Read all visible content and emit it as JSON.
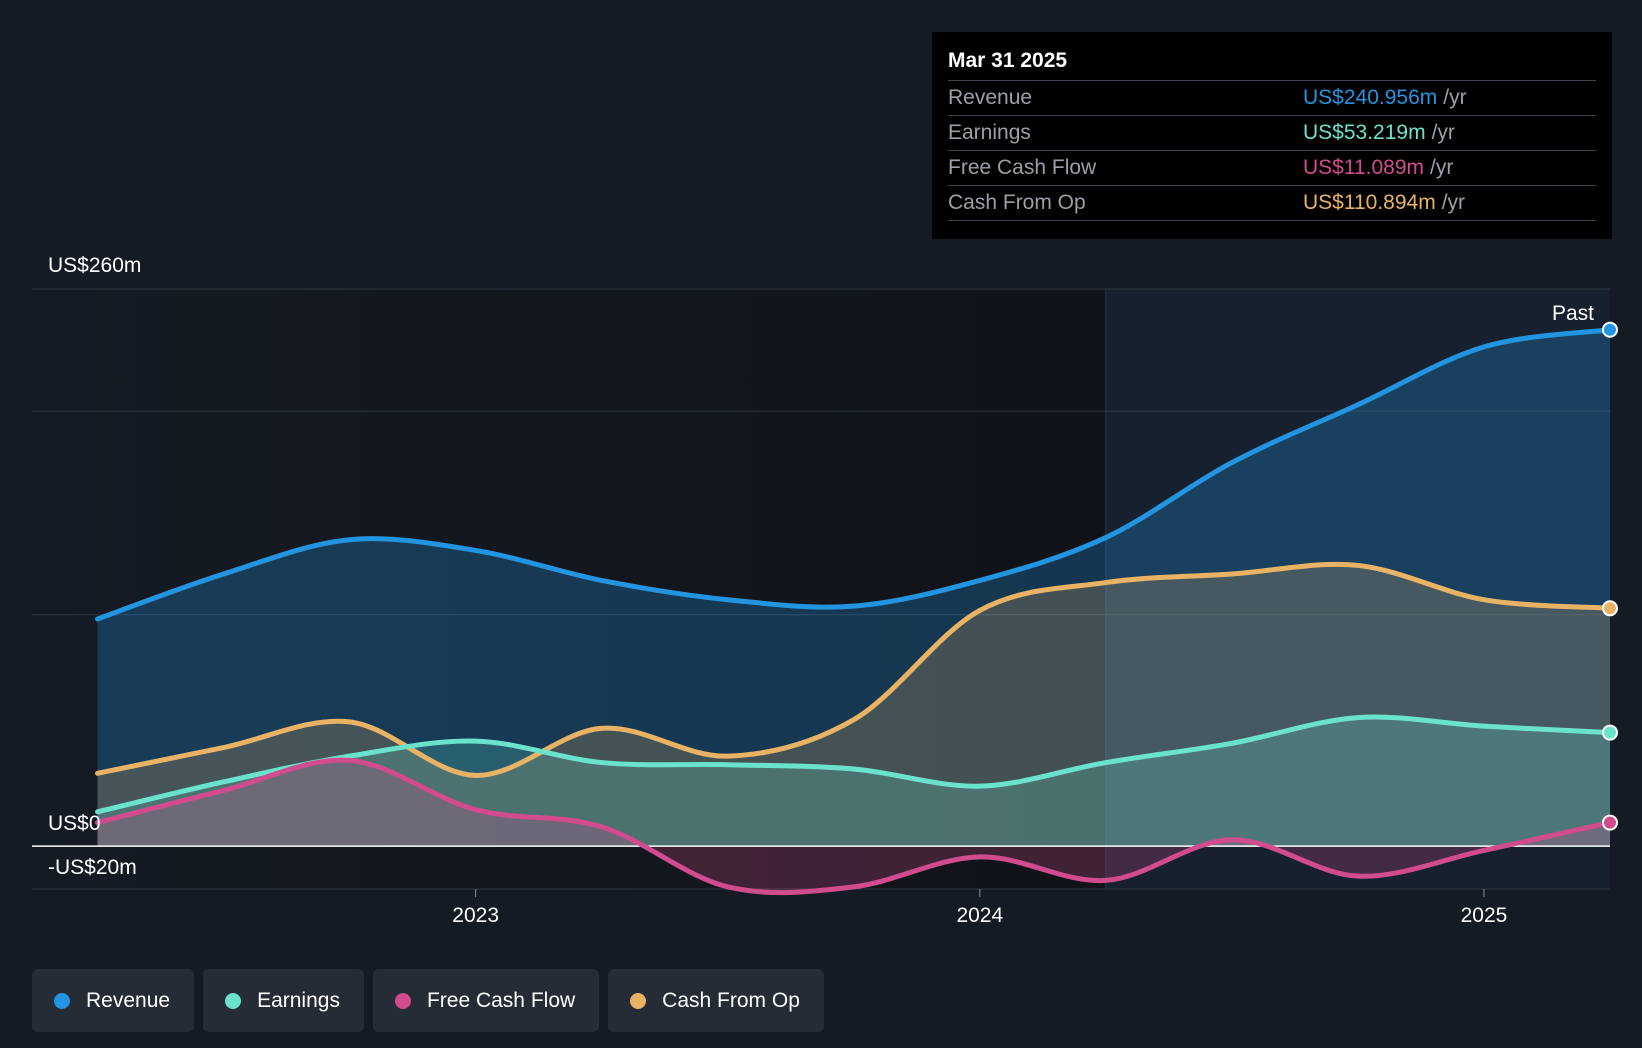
{
  "colors": {
    "background": "#151b24",
    "revenue": "#2394df",
    "earnings": "#6be3cc",
    "fcf": "#d04c8c",
    "cfo": "#e9b365",
    "grid": "#2f3640",
    "zero_line": "#ffffff"
  },
  "tooltip": {
    "date": "Mar 31 2025",
    "rows": [
      {
        "label": "Revenue",
        "value": "US$240.956m",
        "unit": "/yr",
        "color": "#2394df"
      },
      {
        "label": "Earnings",
        "value": "US$53.219m",
        "unit": "/yr",
        "color": "#6be3cc"
      },
      {
        "label": "Free Cash Flow",
        "value": "US$11.089m",
        "unit": "/yr",
        "color": "#d04c8c"
      },
      {
        "label": "Cash From Op",
        "value": "US$110.894m",
        "unit": "/yr",
        "color": "#e9b365"
      }
    ]
  },
  "legend": {
    "items": [
      {
        "label": "Revenue",
        "color": "#2394df"
      },
      {
        "label": "Earnings",
        "color": "#6be3cc"
      },
      {
        "label": "Free Cash Flow",
        "color": "#d04c8c"
      },
      {
        "label": "Cash From Op",
        "color": "#e9b365"
      }
    ]
  },
  "chart_data": {
    "type": "area",
    "title": "",
    "xlabel": "",
    "ylabel": "",
    "ylim": [
      -20,
      260
    ],
    "y_labels": {
      "top": "US$260m",
      "zero": "US$0",
      "bottom": "-US$20m"
    },
    "x_ticks": [
      {
        "label": "2023",
        "t": 2023.0
      },
      {
        "label": "2024",
        "t": 2024.0
      },
      {
        "label": "2025",
        "t": 2025.0
      }
    ],
    "x_range": [
      2022.12,
      2025.25
    ],
    "past_divider_t": 2024.25,
    "past_label": "Past",
    "x": [
      2022.25,
      2022.5,
      2022.75,
      2023.0,
      2023.25,
      2023.5,
      2023.75,
      2024.0,
      2024.25,
      2024.5,
      2024.75,
      2025.0,
      2025.25
    ],
    "series": [
      {
        "name": "Revenue",
        "key": "revenue",
        "values": [
          106,
          127,
          143,
          138,
          124,
          115,
          112,
          124,
          144,
          179,
          206,
          233,
          241
        ]
      },
      {
        "name": "Earnings",
        "key": "earnings",
        "values": [
          16,
          30,
          42,
          49,
          39,
          38,
          36,
          28,
          39,
          48,
          60,
          56,
          53
        ]
      },
      {
        "name": "Free Cash Flow",
        "key": "fcf",
        "values": [
          11,
          26,
          40,
          17,
          9,
          -19,
          -19,
          -5,
          -16,
          3,
          -14,
          -2,
          11
        ]
      },
      {
        "name": "Cash From Op",
        "key": "cfo",
        "values": [
          34,
          46,
          58,
          33,
          55,
          42,
          59,
          110,
          123,
          127,
          131,
          115,
          111
        ]
      }
    ]
  }
}
